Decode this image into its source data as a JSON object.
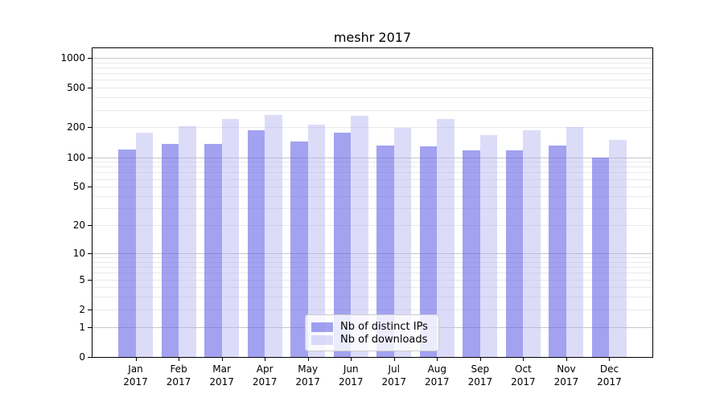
{
  "chart_data": {
    "type": "bar",
    "title": "meshr 2017",
    "scale": "log1p",
    "grid": true,
    "legend_position": "lower-center-inside",
    "year": "2017",
    "categories": [
      "Jan",
      "Feb",
      "Mar",
      "Apr",
      "May",
      "Jun",
      "Jul",
      "Aug",
      "Sep",
      "Oct",
      "Nov",
      "Dec"
    ],
    "series": [
      {
        "name": "Nb of distinct IPs",
        "color": "#a2a2f0",
        "fill": "rgba(100,100,230,0.6)",
        "values": [
          120,
          136,
          135,
          186,
          143,
          178,
          131,
          128,
          118,
          118,
          132,
          99
        ]
      },
      {
        "name": "Nb of downloads",
        "color": "#dcdcf9",
        "fill": "rgba(177,177,242,0.45)",
        "values": [
          178,
          204,
          243,
          266,
          212,
          263,
          199,
          243,
          168,
          186,
          202,
          150
        ]
      }
    ],
    "yticks": [
      0,
      1,
      2,
      5,
      10,
      20,
      50,
      100,
      200,
      500,
      1000
    ],
    "ylim": [
      0,
      1250
    ],
    "grid_major_color": "#c6c6c6",
    "grid_minor_color": "#e9e9e9"
  }
}
